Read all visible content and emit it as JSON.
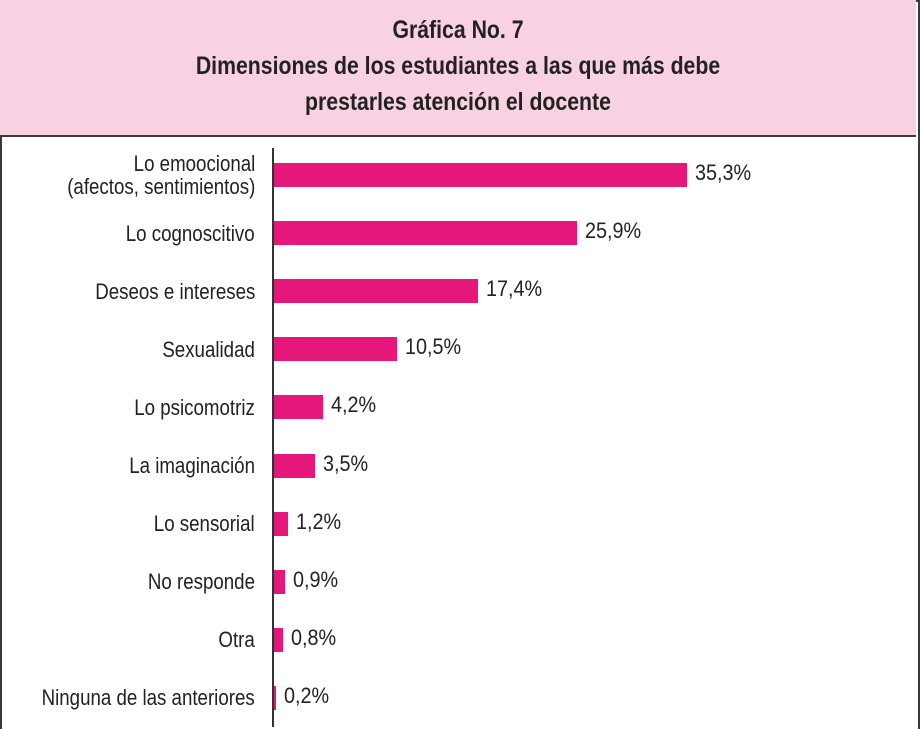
{
  "chart_data": {
    "type": "bar",
    "orientation": "horizontal",
    "title": [
      "Gráfica No. 7",
      "Dimensiones de los estudiantes a las que más debe",
      "prestarles atención el docente"
    ],
    "categories": [
      "Lo emoocional\n(afectos, sentimientos)",
      "Lo cognoscitivo",
      "Deseos e intereses",
      "Sexualidad",
      "Lo psicomotriz",
      "La imaginación",
      "Lo sensorial",
      "No responde",
      "Otra",
      "Ninguna de las anteriores"
    ],
    "values": [
      35.3,
      25.9,
      17.4,
      10.5,
      4.2,
      3.5,
      1.2,
      0.9,
      0.8,
      0.2
    ],
    "value_labels": [
      "35,3%",
      "25,9%",
      "17,4%",
      "10,5%",
      "4,2%",
      "3,5%",
      "1,2%",
      "0,9%",
      "0,8%",
      "0,2%"
    ],
    "color": "#e5177b"
  }
}
